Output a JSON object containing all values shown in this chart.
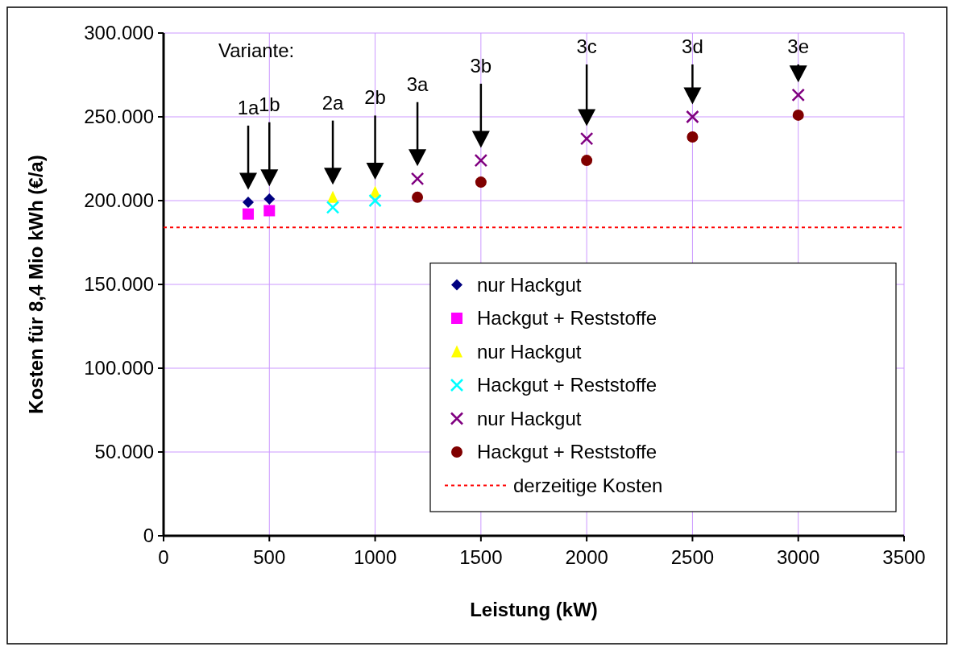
{
  "chart_data": {
    "type": "scatter",
    "xlabel": "Leistung (kW)",
    "ylabel": "Kosten für 8,4 Mio kWh (€/a)",
    "xlim": [
      0,
      3500
    ],
    "xticks": [
      0,
      500,
      1000,
      1500,
      2000,
      2500,
      3000,
      3500
    ],
    "ylim": [
      0,
      300000
    ],
    "yticks": [
      {
        "value": 0,
        "label": "0"
      },
      {
        "value": 50000,
        "label": "50.000"
      },
      {
        "value": 100000,
        "label": "100.000"
      },
      {
        "value": 150000,
        "label": "150.000"
      },
      {
        "value": 200000,
        "label": "200.000"
      },
      {
        "value": 250000,
        "label": "250.000"
      },
      {
        "value": 300000,
        "label": "300.000"
      }
    ],
    "grid": true,
    "legend": "bottom right",
    "series": [
      {
        "name": "nur Hackgut",
        "color": "#000080",
        "marker": "diamond",
        "x": [
          400,
          500
        ],
        "values": [
          199000,
          201000
        ]
      },
      {
        "name": "Hackgut + Reststoffe",
        "color": "#ff00ff",
        "marker": "square",
        "x": [
          400,
          500
        ],
        "values": [
          192000,
          194000
        ]
      },
      {
        "name": "nur Hackgut",
        "color": "#ffff00",
        "marker": "triangle",
        "x": [
          800,
          1000
        ],
        "values": [
          202000,
          205000
        ]
      },
      {
        "name": "Hackgut + Reststoffe",
        "color": "#00ffff",
        "marker": "cross",
        "x": [
          800,
          1000
        ],
        "values": [
          196000,
          200000
        ]
      },
      {
        "name": "nur Hackgut",
        "color": "#800080",
        "marker": "cross",
        "x": [
          1200,
          1500,
          2000,
          2500,
          3000
        ],
        "values": [
          213000,
          224000,
          237000,
          250000,
          263000
        ]
      },
      {
        "name": "Hackgut + Reststoffe",
        "color": "#800000",
        "marker": "circle",
        "x": [
          1200,
          1500,
          2000,
          2500,
          3000
        ],
        "values": [
          202000,
          211000,
          224000,
          238000,
          251000
        ]
      }
    ],
    "ref_lines": [
      {
        "axis": "y",
        "value": 184000,
        "label": "derzeitige Kosten",
        "color": "#ff0000",
        "line_style": "dotted"
      }
    ],
    "annotations": [
      "Variante:",
      "1a",
      "1b",
      "2a",
      "2b",
      "3a",
      "3b",
      "3c",
      "3d",
      "3e"
    ]
  }
}
